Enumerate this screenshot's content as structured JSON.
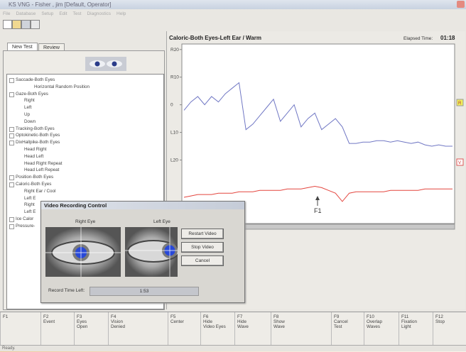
{
  "window": {
    "title": "KS VNG - Fisher , jim [Default, Operator]",
    "menu": [
      "File",
      "Database",
      "Setup",
      "Edit",
      "Test",
      "Diagnostics",
      "Help"
    ]
  },
  "tabs": [
    "New Test",
    "Review"
  ],
  "tree": [
    {
      "label": "Saccade-Both Eyes",
      "children": [
        "Horizontal Random Position"
      ]
    },
    {
      "label": "Gaze-Both Eyes",
      "children": [
        "Right",
        "Left",
        "Up",
        "Down"
      ]
    },
    {
      "label": "Tracking-Both Eyes",
      "children": []
    },
    {
      "label": "Optokinetic-Both Eyes",
      "children": []
    },
    {
      "label": "DixHallpike-Both Eyes",
      "children": [
        "Head Right",
        "Head Left",
        "Head Right Repeat",
        "Head Left Repeat"
      ]
    },
    {
      "label": "Position-Both Eyes",
      "children": []
    },
    {
      "label": "Caloric-Both Eyes",
      "children": [
        "Right Ear / Cool",
        "Left E",
        "Right",
        "Left E"
      ]
    },
    {
      "label": "Ice Calor",
      "children": []
    },
    {
      "label": "Pressure-",
      "children": []
    }
  ],
  "chart": {
    "title": "Caloric-Both Eyes-Left Ear / Warm",
    "elapsed_label": "Elapsed Time:",
    "elapsed": "01:18",
    "ylim": [
      -43,
      22
    ],
    "yticks": [
      {
        "value": 20,
        "label": "R20"
      },
      {
        "value": 10,
        "label": "R10"
      },
      0,
      {
        "value": -10,
        "label": "L10"
      },
      {
        "value": -20,
        "label": "L20"
      }
    ],
    "series": [
      {
        "color": "#7077c4",
        "values": [
          -2,
          1,
          3,
          0,
          3,
          1,
          4,
          6,
          8,
          -9,
          -7,
          -4,
          -1,
          2,
          -6,
          -3,
          0,
          -8,
          -5,
          -3,
          -9,
          -7,
          -5,
          -8,
          -14,
          -14,
          -13.5,
          -13.5,
          -13,
          -13,
          -13.5,
          -13,
          -13.5,
          -14,
          -13.5,
          -14.5,
          -15,
          -14.5,
          -15,
          -15
        ]
      },
      {
        "color": "#e4463f",
        "values": [
          -33.5,
          -33,
          -32.5,
          -32.5,
          -32.5,
          -32,
          -32,
          -32,
          -31.5,
          -31.5,
          -31.5,
          -31,
          -31,
          -31,
          -31,
          -30.5,
          -30.5,
          -30.5,
          -30,
          -29.5,
          -30,
          -31,
          -32,
          -35,
          -32,
          -31.5,
          -31.5,
          -31.5,
          -31.5,
          -31.5,
          -31,
          -31,
          -31,
          -31,
          -31,
          -30.5,
          -30.5,
          -30.5,
          -30.5,
          -30.5
        ]
      }
    ],
    "markers": [
      "R",
      "V"
    ],
    "annotation": "F1"
  },
  "dialog": {
    "title": "Video Recording Control",
    "right_eye": "Right Eye",
    "left_eye": "Left Eye",
    "buttons": [
      "Restart Video",
      "Stop Video",
      "Cancel"
    ],
    "record_label": "Record Time Left:",
    "record_value": "1:53"
  },
  "function_keys": [
    {
      "key": "F1",
      "label": []
    },
    {
      "key": "F2",
      "label": [
        "Event"
      ]
    },
    {
      "key": "F3",
      "label": [
        "Eyes",
        "Open"
      ]
    },
    {
      "key": "F4",
      "label": [
        "Vision",
        "Denied"
      ]
    },
    {
      "key": "F5",
      "label": [
        "Center"
      ]
    },
    {
      "key": "F6",
      "label": [
        "Hide",
        "Video Eyes"
      ]
    },
    {
      "key": "F7",
      "label": [
        "Hide",
        "Wave"
      ]
    },
    {
      "key": "F8",
      "label": [
        "Show",
        "Wave"
      ]
    },
    {
      "key": "F9",
      "label": [
        "Cancel",
        "Test"
      ]
    },
    {
      "key": "F10",
      "label": [
        "Overlap",
        "Waves"
      ]
    },
    {
      "key": "F11",
      "label": [
        "Fixation",
        "Light"
      ]
    },
    {
      "key": "F12",
      "label": [
        "Stop"
      ]
    }
  ],
  "status": "Ready."
}
